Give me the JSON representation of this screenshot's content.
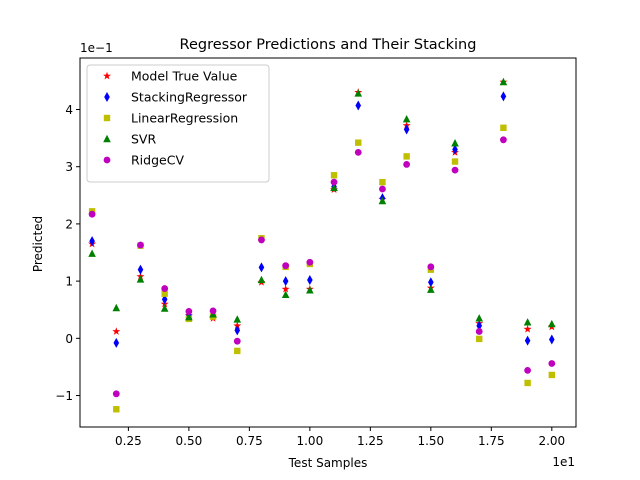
{
  "chart_data": {
    "type": "scatter",
    "title": "Regressor Predictions and Their Stacking",
    "xlabel": "Test Samples",
    "ylabel": "Predicted",
    "x_offset_label": "1e1",
    "y_offset_label": "1e−1",
    "xlim": [
      0.5,
      21.0
    ],
    "ylim": [
      -1.55,
      4.9
    ],
    "xticks": [
      2.5,
      5,
      7.5,
      10,
      12.5,
      15,
      17.5,
      20
    ],
    "xtick_labels": [
      "0.25",
      "0.50",
      "0.75",
      "1.00",
      "1.25",
      "1.50",
      "1.75",
      "2.00"
    ],
    "yticks": [
      -1,
      0,
      1,
      2,
      3,
      4
    ],
    "ytick_labels": [
      "−1",
      "0",
      "1",
      "2",
      "3",
      "4"
    ],
    "grid": false,
    "legend_position": "top-left",
    "x": [
      1,
      2,
      3,
      4,
      5,
      6,
      7,
      8,
      9,
      10,
      11,
      12,
      13,
      14,
      15,
      16,
      17,
      18,
      19,
      20
    ],
    "series": [
      {
        "name": "Model True Value",
        "marker": "star",
        "color": "#ff0000",
        "values": [
          1.65,
          0.12,
          1.08,
          0.6,
          0.4,
          0.35,
          0.22,
          0.98,
          0.86,
          0.86,
          2.6,
          4.3,
          2.43,
          3.72,
          0.88,
          3.25,
          0.26,
          4.48,
          0.16,
          0.2
        ]
      },
      {
        "name": "StackingRegressor",
        "marker": "thin_diamond",
        "color": "#0000ff",
        "values": [
          1.7,
          -0.08,
          1.2,
          0.68,
          0.4,
          0.42,
          0.14,
          1.24,
          1.0,
          1.02,
          2.65,
          4.07,
          2.45,
          3.65,
          0.98,
          3.3,
          0.22,
          4.23,
          -0.04,
          -0.02
        ]
      },
      {
        "name": "LinearRegression",
        "marker": "square",
        "color": "#bfbf00",
        "values": [
          2.22,
          -1.24,
          1.62,
          0.78,
          0.34,
          0.38,
          -0.22,
          1.75,
          1.25,
          1.3,
          2.85,
          3.42,
          2.73,
          3.18,
          1.2,
          3.09,
          -0.01,
          3.68,
          -0.78,
          -0.64
        ]
      },
      {
        "name": "SVR",
        "marker": "triangle",
        "color": "#008000",
        "values": [
          1.48,
          0.53,
          1.03,
          0.52,
          0.37,
          0.42,
          0.33,
          1.02,
          0.76,
          0.84,
          2.63,
          4.28,
          2.4,
          3.83,
          0.85,
          3.41,
          0.35,
          4.48,
          0.28,
          0.25
        ]
      },
      {
        "name": "RidgeCV",
        "marker": "circle",
        "color": "#bf00bf",
        "values": [
          2.17,
          -0.97,
          1.63,
          0.87,
          0.47,
          0.48,
          -0.05,
          1.72,
          1.27,
          1.33,
          2.73,
          3.25,
          2.61,
          3.04,
          1.25,
          2.94,
          0.12,
          3.47,
          -0.56,
          -0.44
        ]
      }
    ]
  }
}
